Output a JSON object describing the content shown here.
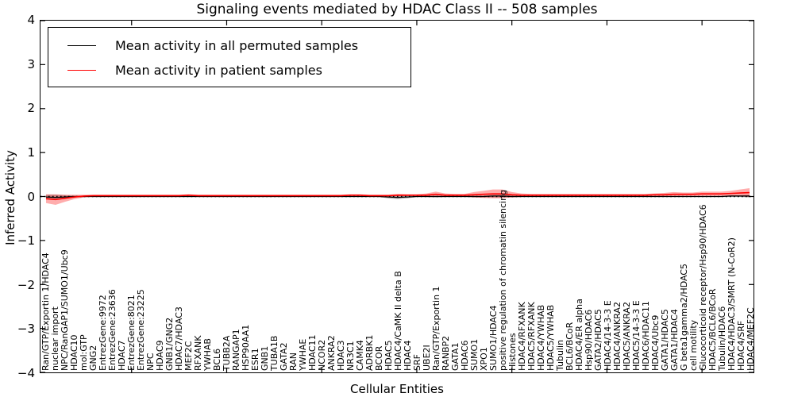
{
  "title": "Signaling events mediated by HDAC Class II -- 508 samples",
  "axes": {
    "xlabel": "Cellular Entities",
    "ylabel": "Inferred Activity",
    "ytick_labels": [
      "4",
      "3",
      "2",
      "1",
      "0",
      "−1",
      "−2",
      "−3",
      "−4"
    ]
  },
  "legend": [
    {
      "label": "Mean activity in all permuted samples",
      "color": "#000000"
    },
    {
      "label": "Mean activity in patient samples",
      "color": "#ff0000"
    }
  ],
  "chart_data": {
    "type": "line",
    "title": "Signaling events mediated by HDAC Class II -- 508 samples",
    "xlabel": "Cellular Entities",
    "ylabel": "Inferred Activity",
    "ylim": [
      -4,
      4
    ],
    "yticks": [
      4,
      3,
      2,
      1,
      0,
      -1,
      -2,
      -3,
      -4
    ],
    "xticks": [
      10,
      20,
      30,
      40,
      50,
      60,
      70
    ],
    "zero_line": {
      "y": 0,
      "style": "dotted",
      "color": "#000000"
    },
    "legend_position": "upper left",
    "categories": [
      "Ran/GTP/Exportin 1/HDAC4",
      "nuclear import",
      "NPC/RanGAP1/SUMO1/Ubc9",
      "HDAC10",
      "mol:GTP",
      "GNG2",
      "EntrezGene:9972",
      "EntrezGene:23636",
      "HDAC7",
      "EntrezGene:8021",
      "EntrezGene:23225",
      "NPC",
      "HDAC9",
      "GNB1/GNG2",
      "HDAC7/HDAC3",
      "MEF2C",
      "RFXANK",
      "YWHAB",
      "BCL6",
      "TUBB2A",
      "RANGAP1",
      "HSP90AA1",
      "ESR1",
      "GNB1",
      "TUBA1B",
      "GATA2",
      "RAN",
      "YWHAE",
      "HDAC11",
      "NCOR2",
      "ANKRA2",
      "HDAC3",
      "NR3C1",
      "CAMK4",
      "ADRBK1",
      "BCOR",
      "HDAC5",
      "HDAC4/CaMK II delta B",
      "HDAC4",
      "SRF",
      "UBE2I",
      "Ran/GTP/Exportin 1",
      "RANBP2",
      "GATA1",
      "HDAC6",
      "SUMO1",
      "XPO1",
      "SUMO1/HDAC4",
      "positive regulation of chromatin silencing",
      "Histones",
      "HDAC4/RFXANK",
      "HDAC5/RFXANK",
      "HDAC4/YWHAB",
      "HDAC5/YWHAB",
      "Tubulin",
      "BCL6/BCoR",
      "HDAC4/ER alpha",
      "Hsp90/HDAC6",
      "GATA2/HDAC5",
      "HDAC4/14-3-3 E",
      "HDAC4/ANKRA2",
      "HDAC5/ANKRA2",
      "HDAC5/14-3-3 E",
      "HDAC6/HDAC11",
      "HDAC4/Ubc9",
      "GATA1/HDAC5",
      "GATA1/HDAC4",
      "G beta1gamma2/HDAC5",
      "cell motility",
      "Glucocorticoid receptor/Hsp90/HDAC6",
      "HDAC5/BCL6/BCoR",
      "Tubulin/HDAC6",
      "HDAC4/HDAC3/SMRT (N-CoR2)",
      "HDAC4/SRF",
      "HDAC4/MEF2C"
    ],
    "series": [
      {
        "name": "Mean activity in all permuted samples",
        "color": "#000000",
        "values": [
          -0.01,
          -0.02,
          -0.01,
          0,
          0,
          0,
          0,
          0,
          0,
          0,
          0,
          0,
          0,
          0,
          0,
          0,
          0,
          0,
          0,
          0,
          0,
          0,
          0,
          0,
          0,
          0,
          0,
          0,
          0,
          0,
          0,
          0,
          0,
          0,
          0,
          0,
          -0.01,
          -0.02,
          -0.01,
          0,
          0,
          0,
          0,
          0,
          0,
          0,
          0,
          0.01,
          0.01,
          0,
          0,
          0,
          0,
          0,
          0,
          0,
          0,
          0,
          0,
          0,
          0,
          0,
          0,
          0,
          0,
          0,
          0,
          0,
          0,
          0,
          0,
          0,
          0.01,
          0.01,
          0.01
        ],
        "band_halfwidth": [
          0.05,
          0.06,
          0.04,
          0.02,
          0.01,
          0.01,
          0.01,
          0.01,
          0.01,
          0.01,
          0.01,
          0.01,
          0.01,
          0.01,
          0.01,
          0.01,
          0.01,
          0.01,
          0.01,
          0.01,
          0.01,
          0.01,
          0.01,
          0.01,
          0.01,
          0.01,
          0.01,
          0.01,
          0.01,
          0.01,
          0.01,
          0.01,
          0.01,
          0.01,
          0.01,
          0.01,
          0.03,
          0.04,
          0.03,
          0.01,
          0.01,
          0.02,
          0.01,
          0.01,
          0.01,
          0.02,
          0.02,
          0.03,
          0.03,
          0.02,
          0.01,
          0.01,
          0.01,
          0.01,
          0.01,
          0.01,
          0.01,
          0.01,
          0.01,
          0.01,
          0.01,
          0.01,
          0.01,
          0.01,
          0.01,
          0.01,
          0.01,
          0.01,
          0.01,
          0.01,
          0.01,
          0.01,
          0.02,
          0.02,
          0.03
        ]
      },
      {
        "name": "Mean activity in patient samples",
        "color": "#ff0000",
        "values": [
          -0.05,
          -0.07,
          -0.04,
          -0.01,
          0.01,
          0.02,
          0.02,
          0.02,
          0.02,
          0.02,
          0.02,
          0.02,
          0.02,
          0.02,
          0.02,
          0.03,
          0.02,
          0.02,
          0.02,
          0.02,
          0.02,
          0.02,
          0.02,
          0.02,
          0.02,
          0.02,
          0.02,
          0.02,
          0.02,
          0.02,
          0.02,
          0.02,
          0.03,
          0.03,
          0.02,
          0.02,
          0.02,
          0.03,
          0.03,
          0.03,
          0.03,
          0.05,
          0.03,
          0.03,
          0.03,
          0.04,
          0.05,
          0.06,
          0.06,
          0.04,
          0.03,
          0.03,
          0.03,
          0.03,
          0.03,
          0.03,
          0.03,
          0.03,
          0.03,
          0.03,
          0.03,
          0.03,
          0.03,
          0.03,
          0.04,
          0.04,
          0.05,
          0.05,
          0.05,
          0.06,
          0.06,
          0.06,
          0.07,
          0.08,
          0.09
        ],
        "band_halfwidth": [
          0.1,
          0.12,
          0.08,
          0.05,
          0.03,
          0.02,
          0.02,
          0.02,
          0.02,
          0.02,
          0.02,
          0.02,
          0.02,
          0.02,
          0.02,
          0.02,
          0.02,
          0.02,
          0.02,
          0.02,
          0.02,
          0.02,
          0.02,
          0.02,
          0.02,
          0.02,
          0.02,
          0.02,
          0.02,
          0.02,
          0.02,
          0.02,
          0.02,
          0.02,
          0.02,
          0.02,
          0.02,
          0.03,
          0.02,
          0.02,
          0.04,
          0.06,
          0.04,
          0.03,
          0.03,
          0.06,
          0.08,
          0.1,
          0.1,
          0.06,
          0.04,
          0.03,
          0.03,
          0.03,
          0.03,
          0.03,
          0.03,
          0.03,
          0.03,
          0.03,
          0.03,
          0.03,
          0.03,
          0.03,
          0.03,
          0.04,
          0.05,
          0.04,
          0.04,
          0.05,
          0.05,
          0.05,
          0.06,
          0.08,
          0.1
        ]
      }
    ]
  }
}
